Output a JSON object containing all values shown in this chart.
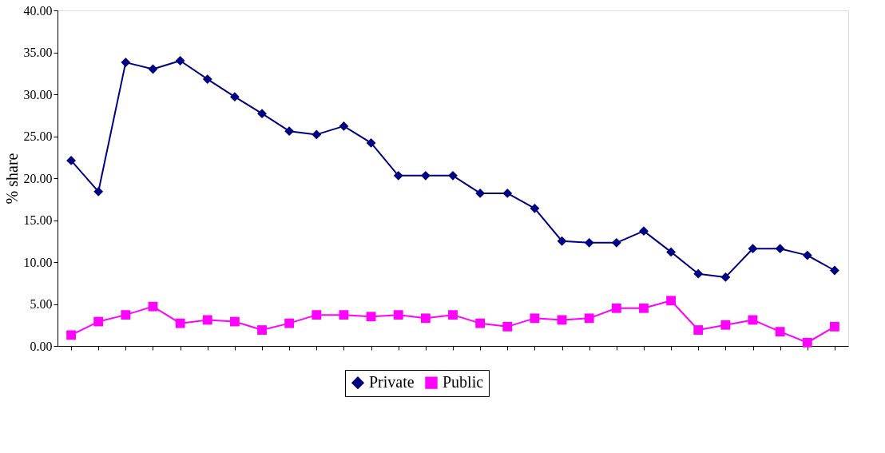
{
  "chart_data": {
    "type": "line",
    "ylabel": "% share",
    "categories": [
      null,
      null,
      null,
      null,
      null,
      null,
      null,
      null,
      null,
      null,
      null,
      null,
      null,
      null,
      null,
      null,
      null,
      null,
      null,
      null,
      null,
      null,
      null,
      null,
      null,
      null,
      null,
      null,
      null
    ],
    "ylim": [
      0,
      40
    ],
    "yticks": [
      {
        "value": 0,
        "label": "0.00"
      },
      {
        "value": 5,
        "label": "5.00"
      },
      {
        "value": 10,
        "label": "10.00"
      },
      {
        "value": 15,
        "label": "15.00"
      },
      {
        "value": 20,
        "label": "20.00"
      },
      {
        "value": 25,
        "label": "25.00"
      },
      {
        "value": 30,
        "label": "30.00"
      },
      {
        "value": 35,
        "label": "35.00"
      },
      {
        "value": 40,
        "label": "40.00"
      }
    ],
    "grid": false,
    "legend": "bottom",
    "tick_labels": "y",
    "line_style": "solid",
    "series": [
      {
        "name": "Private",
        "color": "#000080",
        "marker": "diamond",
        "values": [
          22.1,
          18.4,
          33.8,
          33.0,
          34.0,
          31.8,
          29.7,
          27.7,
          25.6,
          25.2,
          26.2,
          24.2,
          20.3,
          20.3,
          20.3,
          18.2,
          18.2,
          16.4,
          12.5,
          12.3,
          12.3,
          13.7,
          11.2,
          8.6,
          8.2,
          11.6,
          11.6,
          10.8,
          9.0
        ]
      },
      {
        "name": "Public",
        "color": "#ff00ff",
        "marker": "square",
        "values": [
          1.3,
          2.9,
          3.7,
          4.7,
          2.7,
          3.1,
          2.9,
          1.9,
          2.7,
          3.7,
          3.7,
          3.5,
          3.7,
          3.3,
          3.7,
          2.7,
          2.3,
          3.3,
          3.1,
          3.3,
          4.5,
          4.5,
          5.4,
          1.9,
          2.5,
          3.1,
          1.7,
          0.4,
          2.3
        ]
      }
    ]
  }
}
